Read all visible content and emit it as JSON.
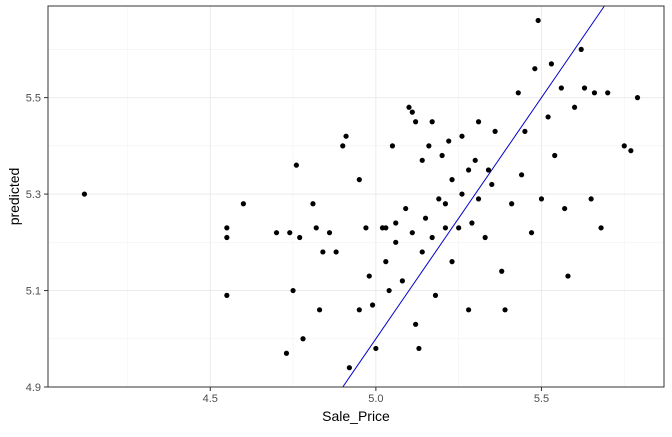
{
  "chart_data": {
    "type": "scatter",
    "title": "",
    "xlabel": "Sale_Price",
    "ylabel": "predicted",
    "xlim": [
      4.01,
      5.87
    ],
    "ylim": [
      4.9,
      5.69
    ],
    "x_ticks": [
      {
        "value": 4.5,
        "label": "4.5"
      },
      {
        "value": 5.0,
        "label": "5.0"
      },
      {
        "value": 5.5,
        "label": "5.5"
      }
    ],
    "y_ticks": [
      {
        "value": 4.9,
        "label": "4.9"
      },
      {
        "value": 5.1,
        "label": "5.1"
      },
      {
        "value": 5.3,
        "label": "5.3"
      },
      {
        "value": 5.5,
        "label": "5.5"
      }
    ],
    "grid": true,
    "reference_line": {
      "type": "identity",
      "slope": 1,
      "intercept": 0,
      "color": "#0000cc"
    },
    "point_color": "#000000",
    "points": [
      [
        4.12,
        5.3
      ],
      [
        4.55,
        5.23
      ],
      [
        4.55,
        5.21
      ],
      [
        4.55,
        5.09
      ],
      [
        4.6,
        5.28
      ],
      [
        4.7,
        5.22
      ],
      [
        4.73,
        4.97
      ],
      [
        4.74,
        5.22
      ],
      [
        4.75,
        5.1
      ],
      [
        4.76,
        5.36
      ],
      [
        4.77,
        5.21
      ],
      [
        4.78,
        5.0
      ],
      [
        4.81,
        5.28
      ],
      [
        4.82,
        5.23
      ],
      [
        4.83,
        5.06
      ],
      [
        4.84,
        5.18
      ],
      [
        4.86,
        5.22
      ],
      [
        4.88,
        5.18
      ],
      [
        4.9,
        5.4
      ],
      [
        4.91,
        5.42
      ],
      [
        4.92,
        4.94
      ],
      [
        4.95,
        5.33
      ],
      [
        4.95,
        5.06
      ],
      [
        4.97,
        5.23
      ],
      [
        4.98,
        5.13
      ],
      [
        4.99,
        5.07
      ],
      [
        5.0,
        4.98
      ],
      [
        5.02,
        5.23
      ],
      [
        5.03,
        5.16
      ],
      [
        5.04,
        5.1
      ],
      [
        5.05,
        5.4
      ],
      [
        5.06,
        5.24
      ],
      [
        5.08,
        5.12
      ],
      [
        5.1,
        5.48
      ],
      [
        5.11,
        5.47
      ],
      [
        5.12,
        5.45
      ],
      [
        5.12,
        5.03
      ],
      [
        5.13,
        4.98
      ],
      [
        5.14,
        5.37
      ],
      [
        5.15,
        5.25
      ],
      [
        5.16,
        5.4
      ],
      [
        5.17,
        5.45
      ],
      [
        5.18,
        5.09
      ],
      [
        5.2,
        5.38
      ],
      [
        5.21,
        5.28
      ],
      [
        5.22,
        5.41
      ],
      [
        5.23,
        5.16
      ],
      [
        5.25,
        5.23
      ],
      [
        5.26,
        5.42
      ],
      [
        5.28,
        5.06
      ],
      [
        5.29,
        5.24
      ],
      [
        5.3,
        5.37
      ],
      [
        5.31,
        5.45
      ],
      [
        5.33,
        5.21
      ],
      [
        5.35,
        5.32
      ],
      [
        5.36,
        5.43
      ],
      [
        5.38,
        5.14
      ],
      [
        5.39,
        5.06
      ],
      [
        5.41,
        5.28
      ],
      [
        5.43,
        5.51
      ],
      [
        5.44,
        5.34
      ],
      [
        5.45,
        5.43
      ],
      [
        5.47,
        5.22
      ],
      [
        5.48,
        5.56
      ],
      [
        5.49,
        5.66
      ],
      [
        5.5,
        5.29
      ],
      [
        5.52,
        5.46
      ],
      [
        5.53,
        5.57
      ],
      [
        5.54,
        5.38
      ],
      [
        5.56,
        5.52
      ],
      [
        5.57,
        5.27
      ],
      [
        5.58,
        5.13
      ],
      [
        5.6,
        5.48
      ],
      [
        5.62,
        5.6
      ],
      [
        5.63,
        5.52
      ],
      [
        5.65,
        5.29
      ],
      [
        5.66,
        5.51
      ],
      [
        5.68,
        5.23
      ],
      [
        5.7,
        5.51
      ],
      [
        5.75,
        5.4
      ],
      [
        5.77,
        5.39
      ],
      [
        5.79,
        5.5
      ],
      [
        5.03,
        5.23
      ],
      [
        5.06,
        5.2
      ],
      [
        5.09,
        5.27
      ],
      [
        5.11,
        5.22
      ],
      [
        5.14,
        5.18
      ],
      [
        5.17,
        5.21
      ],
      [
        5.19,
        5.29
      ],
      [
        5.21,
        5.23
      ],
      [
        5.23,
        5.33
      ],
      [
        5.26,
        5.3
      ],
      [
        5.28,
        5.35
      ],
      [
        5.31,
        5.29
      ],
      [
        5.34,
        5.35
      ]
    ]
  }
}
